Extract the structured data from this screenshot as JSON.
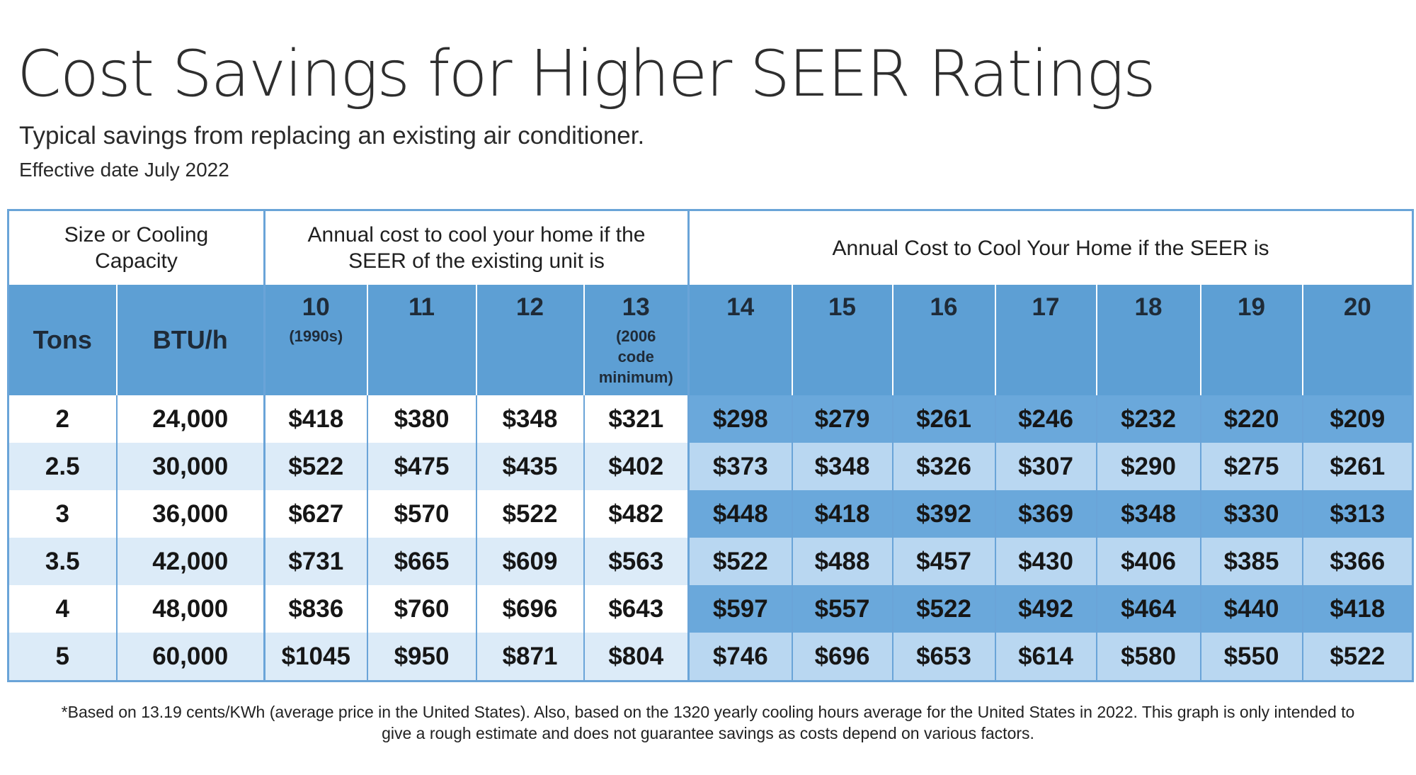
{
  "header": {
    "title": "Cost Savings for Higher SEER Ratings",
    "subtitle": "Typical savings from replacing an existing air conditioner.",
    "effective_date": "Effective date July 2022"
  },
  "table": {
    "group_headers": {
      "size": "Size or Cooling Capacity",
      "existing": "Annual cost to cool your home if the SEER of the existing unit is",
      "new": "Annual Cost to Cool Your Home if the SEER is"
    },
    "columns": {
      "tons": "Tons",
      "btu": "BTU/h",
      "seer": [
        {
          "value": "10",
          "note": "(1990s)"
        },
        {
          "value": "11",
          "note": ""
        },
        {
          "value": "12",
          "note": ""
        },
        {
          "value": "13",
          "note": "(2006 code minimum)"
        },
        {
          "value": "14",
          "note": ""
        },
        {
          "value": "15",
          "note": ""
        },
        {
          "value": "16",
          "note": ""
        },
        {
          "value": "17",
          "note": ""
        },
        {
          "value": "18",
          "note": ""
        },
        {
          "value": "19",
          "note": ""
        },
        {
          "value": "20",
          "note": ""
        }
      ]
    },
    "rows": [
      {
        "tons": "2",
        "btu": "24,000",
        "costs": [
          "$418",
          "$380",
          "$348",
          "$321",
          "$298",
          "$279",
          "$261",
          "$246",
          "$232",
          "$220",
          "$209"
        ]
      },
      {
        "tons": "2.5",
        "btu": "30,000",
        "costs": [
          "$522",
          "$475",
          "$435",
          "$402",
          "$373",
          "$348",
          "$326",
          "$307",
          "$290",
          "$275",
          "$261"
        ]
      },
      {
        "tons": "3",
        "btu": "36,000",
        "costs": [
          "$627",
          "$570",
          "$522",
          "$482",
          "$448",
          "$418",
          "$392",
          "$369",
          "$348",
          "$330",
          "$313"
        ]
      },
      {
        "tons": "3.5",
        "btu": "42,000",
        "costs": [
          "$731",
          "$665",
          "$609",
          "$563",
          "$522",
          "$488",
          "$457",
          "$430",
          "$406",
          "$385",
          "$366"
        ]
      },
      {
        "tons": "4",
        "btu": "48,000",
        "costs": [
          "$836",
          "$760",
          "$696",
          "$643",
          "$597",
          "$557",
          "$522",
          "$492",
          "$464",
          "$440",
          "$418"
        ]
      },
      {
        "tons": "5",
        "btu": "60,000",
        "costs": [
          "$1045",
          "$950",
          "$871",
          "$804",
          "$746",
          "$696",
          "$653",
          "$614",
          "$580",
          "$550",
          "$522"
        ]
      }
    ]
  },
  "footnote": {
    "line1": "*Based on 13.19 cents/KWh (average price in the United States). Also, based on the 1320 yearly cooling hours average for the United States in 2022. This graph is only intended to",
    "line2": "give a rough estimate and does not guarantee savings as costs depend on various factors."
  },
  "colors": {
    "header_blue": "#5d9fd4",
    "border_blue": "#6aa4d8",
    "light_row": "#dcebf8",
    "new_dark": "#6aa8db",
    "new_light": "#b9d7f1"
  }
}
